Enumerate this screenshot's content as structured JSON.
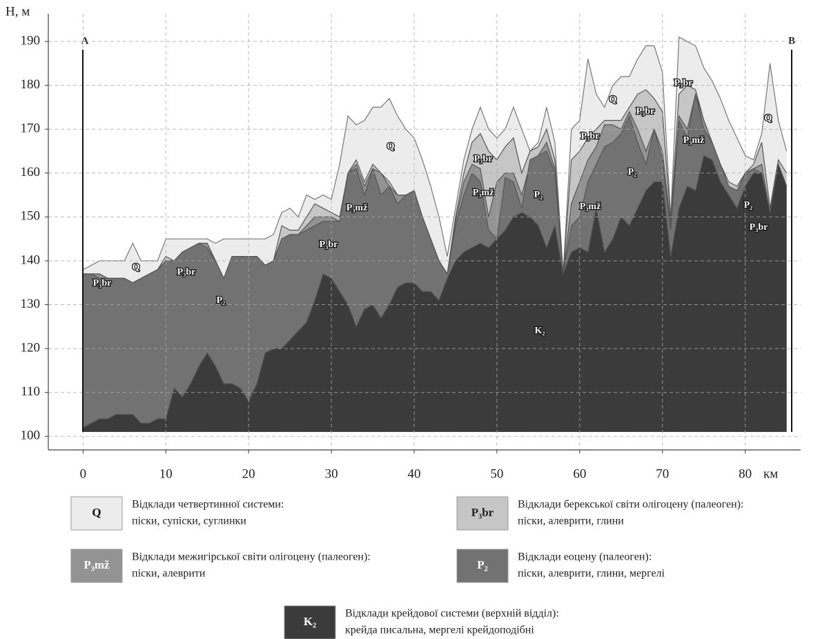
{
  "chart_data": {
    "type": "area",
    "y_label": "H, м",
    "x_label": "км",
    "start_label": "A",
    "end_label": "B",
    "xlim": [
      -4.2,
      86.7
    ],
    "ylim": [
      96.9,
      196.3
    ],
    "xticks": [
      0,
      10,
      20,
      30,
      40,
      50,
      60,
      70,
      80
    ],
    "yticks": [
      100,
      110,
      120,
      130,
      140,
      150,
      160,
      170,
      180,
      190
    ],
    "grid": true,
    "base": 101,
    "x": [
      0,
      1,
      2,
      3,
      4,
      5,
      6,
      7,
      8,
      9,
      10,
      11,
      12,
      13,
      14,
      15,
      16,
      17,
      18,
      19,
      20,
      21,
      22,
      23,
      24,
      25,
      26,
      27,
      28,
      29,
      30,
      31,
      32,
      33,
      34,
      35,
      36,
      37,
      38,
      39,
      40,
      41,
      42,
      43,
      44,
      45,
      46,
      47,
      48,
      49,
      50,
      51,
      52,
      53,
      54,
      55,
      56,
      57,
      58,
      59,
      60,
      61,
      62,
      63,
      64,
      65,
      66,
      67,
      68,
      69,
      70,
      71,
      72,
      73,
      74,
      75,
      76,
      77,
      78,
      79,
      80,
      81,
      82,
      83,
      84,
      85
    ],
    "series": [
      {
        "name": "Відклади четвертинної системи:",
        "description": "піски, супіски, суглинки",
        "symbol": "Q",
        "color": "#ececec",
        "values": [
          138,
          139,
          140,
          140,
          140,
          140,
          144,
          140,
          140,
          140,
          145,
          145,
          145,
          145,
          145,
          145,
          144,
          145,
          145,
          145,
          145,
          145,
          145,
          146,
          151,
          152,
          150,
          155,
          154,
          155,
          154,
          162,
          173,
          171,
          172,
          175,
          175,
          177,
          173,
          170,
          168,
          163,
          157,
          150,
          141,
          152,
          163,
          170,
          175,
          170,
          168,
          170,
          175,
          170,
          165,
          167,
          175,
          167,
          137,
          170,
          172,
          186,
          178,
          175,
          180,
          182,
          182,
          186,
          189,
          189,
          183,
          150,
          191,
          190,
          189,
          184,
          181,
          177,
          172,
          168,
          164,
          163,
          169,
          185,
          172,
          165
        ]
      },
      {
        "name": "Відклади берекської світи олігоцену (палеоген):",
        "description": "піски, алеврити, глини",
        "symbol": "P₃br",
        "color": "#c6c6c6",
        "values": [
          137,
          137,
          137,
          136,
          136,
          136,
          135,
          136,
          137,
          138,
          141,
          140,
          142,
          143,
          144,
          144,
          140,
          136,
          141,
          141,
          141,
          141,
          139,
          140,
          148,
          147,
          147,
          150,
          153,
          152,
          151,
          150,
          160,
          163,
          158,
          162,
          160,
          158,
          155,
          155,
          156,
          150,
          145,
          140,
          137,
          150,
          160,
          167,
          169,
          165,
          163,
          166,
          168,
          160,
          165,
          166,
          170,
          163,
          137,
          163,
          165,
          168,
          170,
          172,
          172,
          172,
          175,
          178,
          179,
          177,
          174,
          149,
          178,
          180,
          179,
          172,
          167,
          162,
          158,
          157,
          160,
          162,
          167,
          152,
          163,
          160
        ]
      },
      {
        "name": "Відклади межигірської світи олігоцену (палеоген):",
        "description": "піски, алеврити",
        "symbol": "P₃mž",
        "color": "#939393",
        "values": [
          137,
          137,
          137,
          136,
          136,
          136,
          135,
          136,
          137,
          138,
          140,
          140,
          142,
          143,
          144,
          144,
          140,
          136,
          141,
          141,
          141,
          141,
          139,
          140,
          145,
          146,
          146,
          148,
          150,
          150,
          150,
          149,
          160,
          162,
          157,
          161,
          160,
          157,
          155,
          155,
          156,
          150,
          145,
          140,
          137,
          149,
          158,
          162,
          161,
          150,
          158,
          160,
          160,
          155,
          162,
          164,
          167,
          161,
          137,
          153,
          158,
          163,
          166,
          171,
          171,
          170,
          174,
          170,
          165,
          170,
          165,
          148,
          173,
          170,
          178,
          172,
          167,
          162,
          157,
          156,
          160,
          161,
          162,
          151,
          162,
          157
        ]
      },
      {
        "name": "Відклади еоцену (палеоген):",
        "description": "піски, алеврити, глини, мергелі",
        "symbol": "P₂",
        "color": "#727272",
        "values": [
          137,
          137,
          136,
          136,
          136,
          136,
          135,
          136,
          137,
          138,
          140,
          140,
          142,
          143,
          144,
          143,
          140,
          136,
          141,
          141,
          141,
          141,
          139,
          140,
          145,
          146,
          146,
          147,
          148,
          149,
          149,
          149,
          160,
          161,
          155,
          161,
          155,
          157,
          153,
          155,
          156,
          150,
          145,
          140,
          137,
          148,
          155,
          160,
          158,
          147,
          145,
          159,
          158,
          152,
          163,
          164,
          165,
          160,
          137,
          148,
          150,
          158,
          162,
          166,
          167,
          169,
          173,
          167,
          162,
          170,
          163,
          147,
          172,
          168,
          178,
          170,
          167,
          162,
          157,
          156,
          160,
          161,
          160,
          151,
          162,
          157
        ]
      },
      {
        "name": "Відклади крейдової системи (верхній відділ):",
        "description": "крейда писальна, мергелі крейдоподібні",
        "symbol": "K₂",
        "color": "#3b3b3b",
        "values": [
          102,
          103,
          104,
          104,
          105,
          105,
          105,
          103,
          103,
          104,
          104,
          111,
          109,
          112,
          116,
          119,
          116,
          112,
          112,
          111,
          108,
          112,
          119,
          120,
          120,
          122,
          124,
          126,
          131,
          137,
          136,
          133,
          130,
          125,
          129,
          130,
          127,
          130,
          134,
          135,
          135,
          133,
          133,
          131,
          136,
          140,
          142,
          143,
          144,
          143,
          145,
          147,
          150,
          151,
          150,
          148,
          143,
          148,
          137,
          142,
          143,
          142,
          152,
          142,
          145,
          150,
          148,
          152,
          156,
          158,
          158,
          141,
          152,
          157,
          156,
          164,
          163,
          158,
          155,
          152,
          157,
          160,
          160,
          151,
          162,
          157
        ]
      }
    ],
    "annotations": [
      "Q",
      "P₃br",
      "P₃br",
      "P₂",
      "P₃mž",
      "P₃br",
      "Q",
      "P₃br",
      "P₃mž",
      "P₂",
      "K₂",
      "P₃br",
      "P₃mž",
      "Q",
      "P₃br",
      "P₂",
      "P₃br",
      "P₃mž",
      "Q",
      "P₂",
      "P₃br"
    ]
  }
}
